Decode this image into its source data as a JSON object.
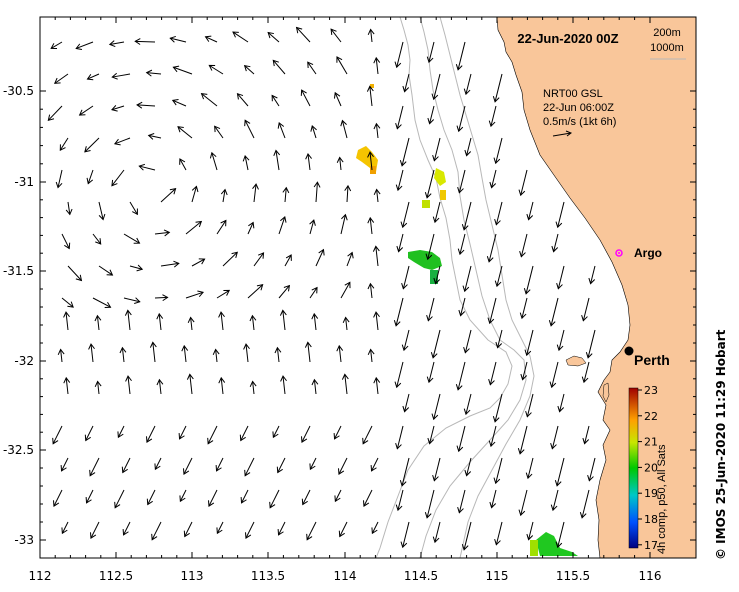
{
  "map": {
    "title": "22-Jun-2020 00Z",
    "depth_legend": [
      "200m",
      "1000m"
    ],
    "current_info": [
      "NRT00 GSL",
      "22-Jun 06:00Z",
      "0.5m/s (1kt 6h)"
    ],
    "argo_label": "Argo",
    "city_label": "Perth",
    "credit": "© IMOS 25-Jun-2020 11:29 Hobart",
    "x_ticks": [
      "112",
      "112.5",
      "113",
      "113.5",
      "114",
      "114.5",
      "115",
      "115.5",
      "116"
    ],
    "y_ticks": [
      "-30.5",
      "-31",
      "-31.5",
      "-32",
      "-32.5",
      "-33"
    ],
    "colorbar": {
      "caption": "4h comp, p50, All Sats",
      "ticks": [
        "23",
        "22",
        "21",
        "20",
        "19",
        "18",
        "17"
      ]
    },
    "colors": {
      "land": "#f9c69a",
      "isobath": "#b8b8b8",
      "arrow": "#000000",
      "argo": "#ff00ff"
    }
  }
}
